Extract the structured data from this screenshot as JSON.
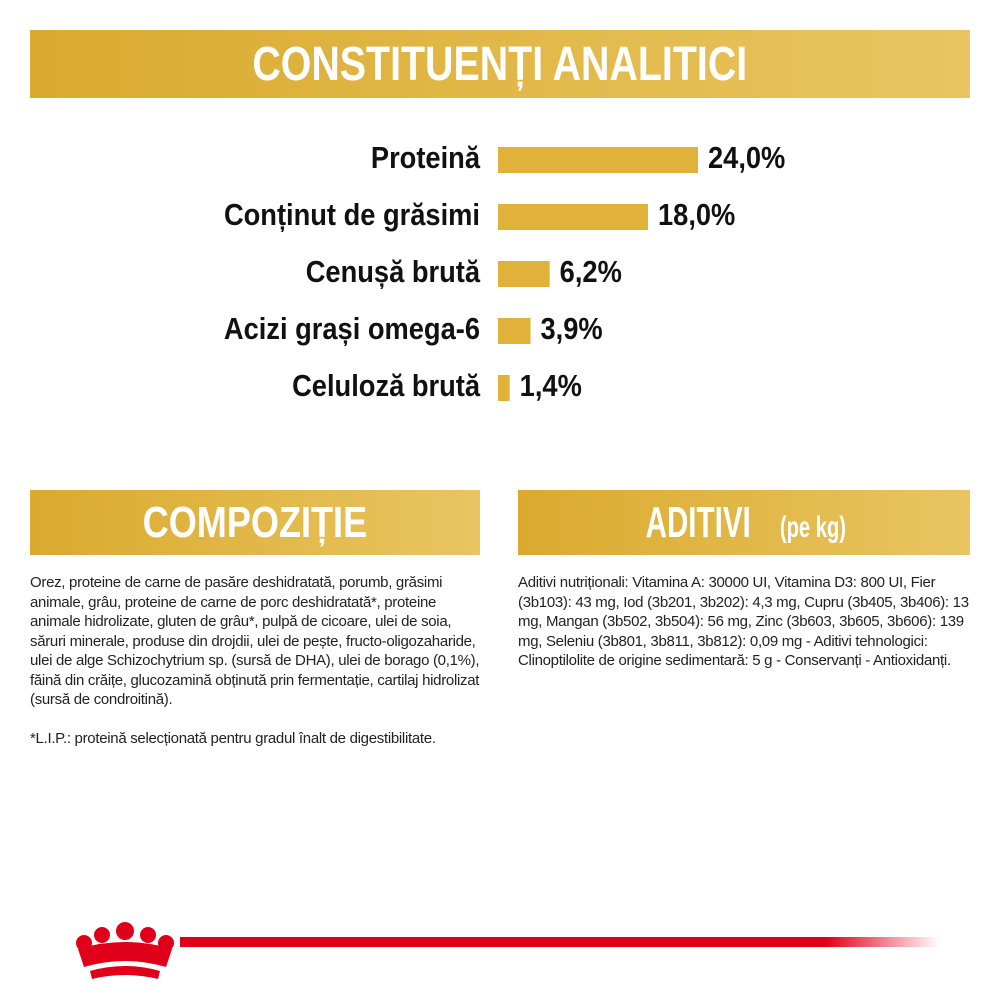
{
  "chart_data": {
    "type": "bar",
    "orientation": "horizontal",
    "title": "CONSTITUENȚI ANALITICI",
    "categories": [
      "Proteină",
      "Conținut de grăsimi",
      "Cenușă brută",
      "Acizi grași omega-6",
      "Celuloză brută"
    ],
    "values": [
      24.0,
      18.0,
      6.2,
      3.9,
      1.4
    ],
    "value_labels": [
      "24,0%",
      "18,0%",
      "6,2%",
      "3,9%",
      "1,4%"
    ],
    "color": "#e0b23a"
  },
  "composition": {
    "title": "COMPOZIȚIE",
    "paragraphs": [
      "Orez, proteine de carne de pasăre deshidratată, porumb, grăsimi animale, grâu, proteine de carne de porc deshidratată*, proteine animale hidrolizate, gluten de grâu*, pulpă de cicoare, ulei de soia, săruri minerale, produse din drojdii, ulei de pește, fructo-oligozaharide, ulei de alge Schizochytrium sp. (sursă de DHA), ulei de borago (0,1%), făină din crăițe, glucozamină obținută prin fermentație, cartilaj hidrolizat (sursă de condroitină).",
      "*L.I.P.: proteină selecționată pentru gradul înalt de digestibilitate."
    ]
  },
  "additives": {
    "title": "ADITIVI",
    "title_suffix": "(pe kg)",
    "paragraphs": [
      "Aditivi nutriționali: Vitamina A: 30000 UI, Vitamina D3: 800 UI, Fier (3b103): 43 mg, Iod (3b201, 3b202): 4,3 mg, Cupru (3b405, 3b406): 13 mg, Mangan (3b502, 3b504): 56 mg, Zinc (3b603, 3b605, 3b606): 139 mg, Seleniu (3b801, 3b811, 3b812): 0,09 mg - Aditivi tehnologici: Clinoptilolite de origine sedimentară: 5 g - Conservanți - Antioxidanți."
    ]
  }
}
